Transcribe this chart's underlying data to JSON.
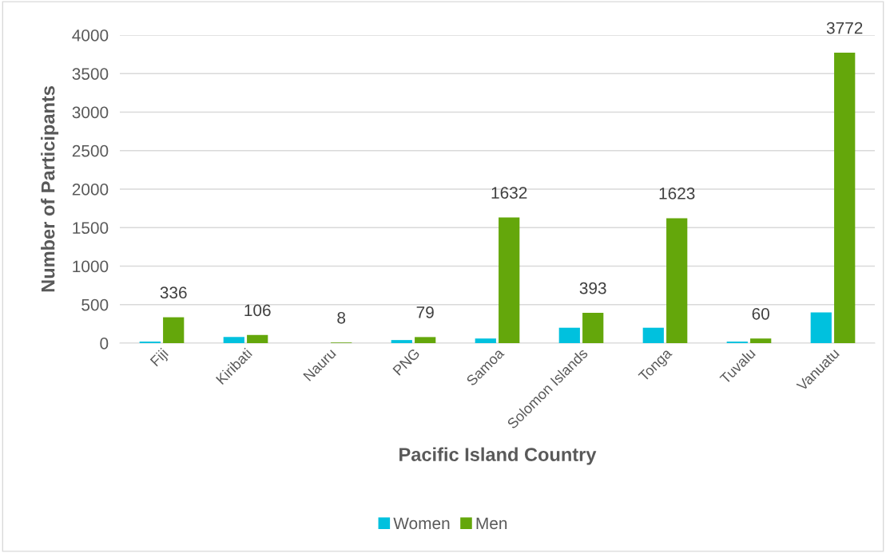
{
  "chart_data": {
    "type": "bar",
    "xlabel": "Pacific Island Country",
    "ylabel": "Number of Participants",
    "categories": [
      "Fiji",
      "Kiribati",
      "Nauru",
      "PNG",
      "Samoa",
      "Solomon Islands",
      "Tonga",
      "Tuvalu",
      "Vanuatu"
    ],
    "series": [
      {
        "name": "Women",
        "color": "#00c1de",
        "values": [
          20,
          80,
          null,
          40,
          60,
          200,
          200,
          20,
          400
        ]
      },
      {
        "name": "Men",
        "color": "#64a70b",
        "values": [
          336,
          106,
          8,
          79,
          1632,
          393,
          1623,
          60,
          3772
        ],
        "value_labels": [
          "336",
          "106",
          "8",
          "79",
          "1632",
          "393",
          "1623",
          "60",
          "3772"
        ]
      }
    ],
    "ylim": [
      0,
      4000
    ],
    "yticks": [
      0,
      500,
      1000,
      1500,
      2000,
      2500,
      3000,
      3500,
      4000
    ],
    "grid": "y",
    "legend": "bottom"
  }
}
